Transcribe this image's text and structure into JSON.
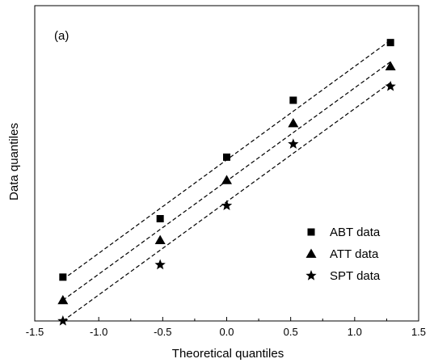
{
  "chart_data": {
    "type": "scatter",
    "title": "",
    "panel_label": "(a)",
    "xlabel": "Theoretical quantiles",
    "ylabel": "Data quantiles",
    "xlim": [
      -1.5,
      1.5
    ],
    "ylim": [
      -1.85,
      2.25
    ],
    "x_ticks": [
      -1.5,
      -1.0,
      -0.5,
      0.0,
      0.5,
      1.0,
      1.5
    ],
    "x_tick_labels": [
      "-1.5",
      "-1.0",
      "-0.5",
      "0.0",
      "0.5",
      "1.0",
      "1.5"
    ],
    "y_ticks_labeled": false,
    "grid": false,
    "legend_position": "lower-right",
    "series": [
      {
        "name": "ABT data",
        "marker": "square",
        "x": [
          -1.28,
          -0.52,
          0.0,
          0.52,
          1.28
        ],
        "y": [
          -1.28,
          -0.52,
          0.28,
          1.02,
          1.77
        ],
        "fit_line": {
          "x": [
            -1.28,
            1.28
          ],
          "y": [
            -1.31,
            1.8
          ],
          "style": "dashed"
        }
      },
      {
        "name": "ATT data",
        "marker": "triangle",
        "x": [
          -1.28,
          -0.52,
          0.0,
          0.52,
          1.28
        ],
        "y": [
          -1.58,
          -0.8,
          -0.02,
          0.72,
          1.46
        ],
        "fit_line": {
          "x": [
            -1.28,
            1.28
          ],
          "y": [
            -1.58,
            1.52
          ],
          "style": "dashed"
        }
      },
      {
        "name": "SPT data",
        "marker": "star",
        "x": [
          -1.28,
          -0.52,
          0.0,
          0.52,
          1.28
        ],
        "y": [
          -1.85,
          -1.12,
          -0.35,
          0.45,
          1.2
        ],
        "fit_line": {
          "x": [
            -1.28,
            1.28
          ],
          "y": [
            -1.85,
            1.25
          ],
          "style": "dashed"
        }
      }
    ]
  }
}
